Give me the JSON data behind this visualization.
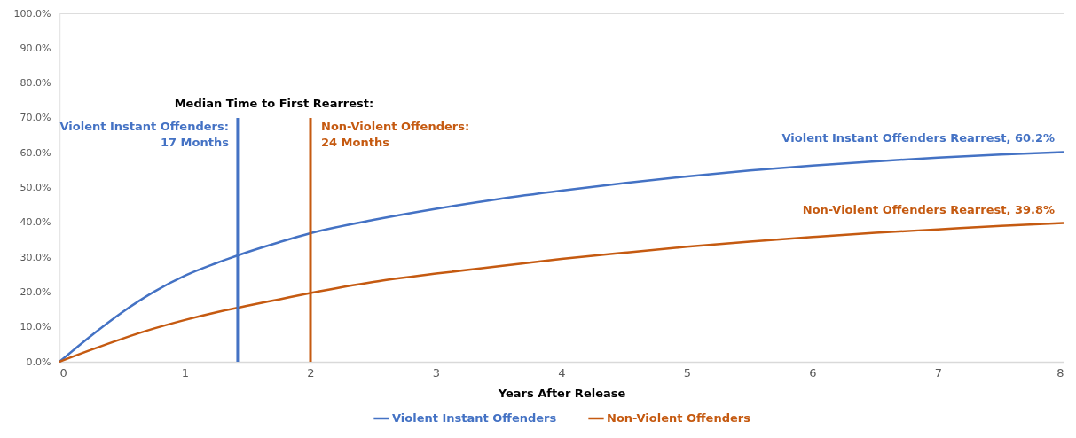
{
  "chart_data": {
    "type": "line",
    "xlabel": "Years After Release",
    "annotations": [
      "Median Time to First Rearrest:",
      {
        "text": "Violent Instant Offenders:\n17 Months",
        "x": 1.42
      },
      {
        "text": "Non-Violent Offenders:\n24 Months",
        "x": 2
      },
      {
        "text": "Violent Instant Offenders Rearrest, 60.2%",
        "x": 8,
        "y": 60.2
      },
      {
        "text": "Non-Violent Offenders Rearrest, 39.8%",
        "x": 8,
        "y": 39.8
      }
    ],
    "x": [
      0,
      0.25,
      0.5,
      0.75,
      1,
      1.25,
      1.5,
      1.75,
      2,
      2.5,
      3,
      3.5,
      4,
      4.5,
      5,
      5.5,
      6,
      6.5,
      7,
      7.5,
      8
    ],
    "xlim": [
      0,
      8
    ],
    "xticks": [
      0,
      1,
      2,
      3,
      4,
      5,
      6,
      7,
      8
    ],
    "ylim": [
      0,
      100
    ],
    "yticks": [
      {
        "value": 0,
        "label": "0.0%"
      },
      {
        "value": 10,
        "label": "10.0%"
      },
      {
        "value": 20,
        "label": "20.0%"
      },
      {
        "value": 30,
        "label": "30.0%"
      },
      {
        "value": 40,
        "label": "40.0%"
      },
      {
        "value": 50,
        "label": "50.0%"
      },
      {
        "value": 60,
        "label": "60.0%"
      },
      {
        "value": 70,
        "label": "70.0%"
      },
      {
        "value": 80,
        "label": "80.0%"
      },
      {
        "value": 90,
        "label": "90.0%"
      },
      {
        "value": 100,
        "label": "100.0%"
      }
    ],
    "legend": "bottom",
    "ref_lines": [
      {
        "axis": "x",
        "value": 1.42,
        "color": "#4472c4"
      },
      {
        "axis": "x",
        "value": 2,
        "color": "#c55a11"
      }
    ],
    "series": [
      {
        "name": "Violent Instant Offenders",
        "color": "#4472c4",
        "values": [
          0,
          7.4,
          14.2,
          20.0,
          24.7,
          28.3,
          31.5,
          34.3,
          36.9,
          40.7,
          43.9,
          46.7,
          49.1,
          51.3,
          53.2,
          54.9,
          56.3,
          57.5,
          58.6,
          59.5,
          60.2
        ]
      },
      {
        "name": "Non-Violent Offenders",
        "color": "#c55a11",
        "values": [
          0,
          3.4,
          6.6,
          9.5,
          12.0,
          14.2,
          16.1,
          17.9,
          19.7,
          22.9,
          25.3,
          27.4,
          29.5,
          31.3,
          33.0,
          34.5,
          35.8,
          37.0,
          38.0,
          39.0,
          39.8
        ]
      }
    ]
  }
}
